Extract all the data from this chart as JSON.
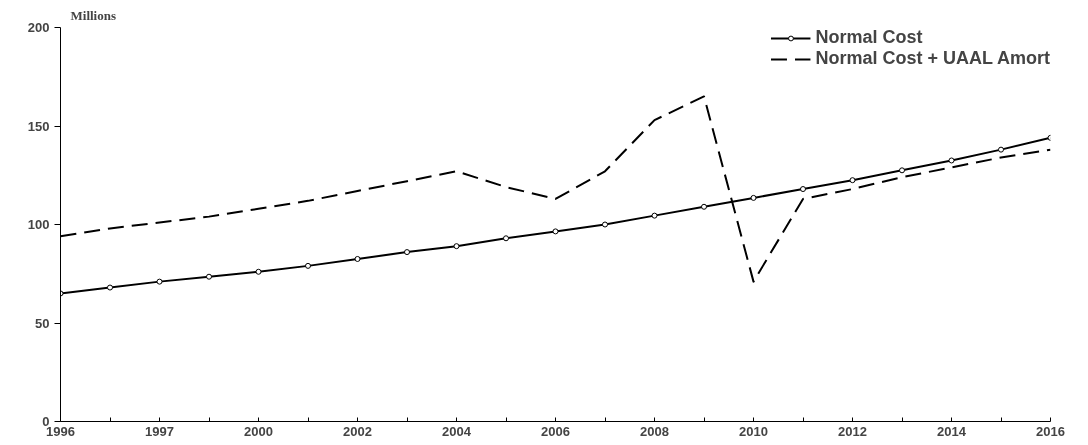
{
  "chart_data": {
    "type": "line",
    "ylabel": "Millions",
    "categories": [
      "1996",
      null,
      "1997",
      null,
      "2000",
      null,
      "2002",
      null,
      "2004",
      null,
      "2006",
      null,
      "2008",
      null,
      "2010",
      null,
      "2012",
      null,
      "2014",
      null,
      "2016"
    ],
    "series": [
      {
        "name": "Normal Cost",
        "color": "#000000",
        "marker": "circle",
        "line_style": "solid",
        "values": [
          65,
          68,
          71,
          73.5,
          76,
          79,
          82.5,
          86,
          89,
          93,
          96.5,
          100,
          104.5,
          109,
          113.5,
          118,
          122.5,
          127.5,
          132.5,
          138,
          144
        ]
      },
      {
        "name": "Normal Cost + UAAL Amort",
        "color": "#000000",
        "marker": "none",
        "line_style": "dashed",
        "values": [
          94,
          98,
          101,
          104,
          108,
          112,
          117,
          122,
          127,
          119,
          113,
          127,
          153,
          165,
          71,
          113,
          118,
          124,
          129,
          134,
          138
        ]
      }
    ],
    "ylim": [
      0,
      200
    ],
    "yticks": [
      0,
      50,
      100,
      150,
      200
    ],
    "grid": false,
    "legend": "top right"
  }
}
